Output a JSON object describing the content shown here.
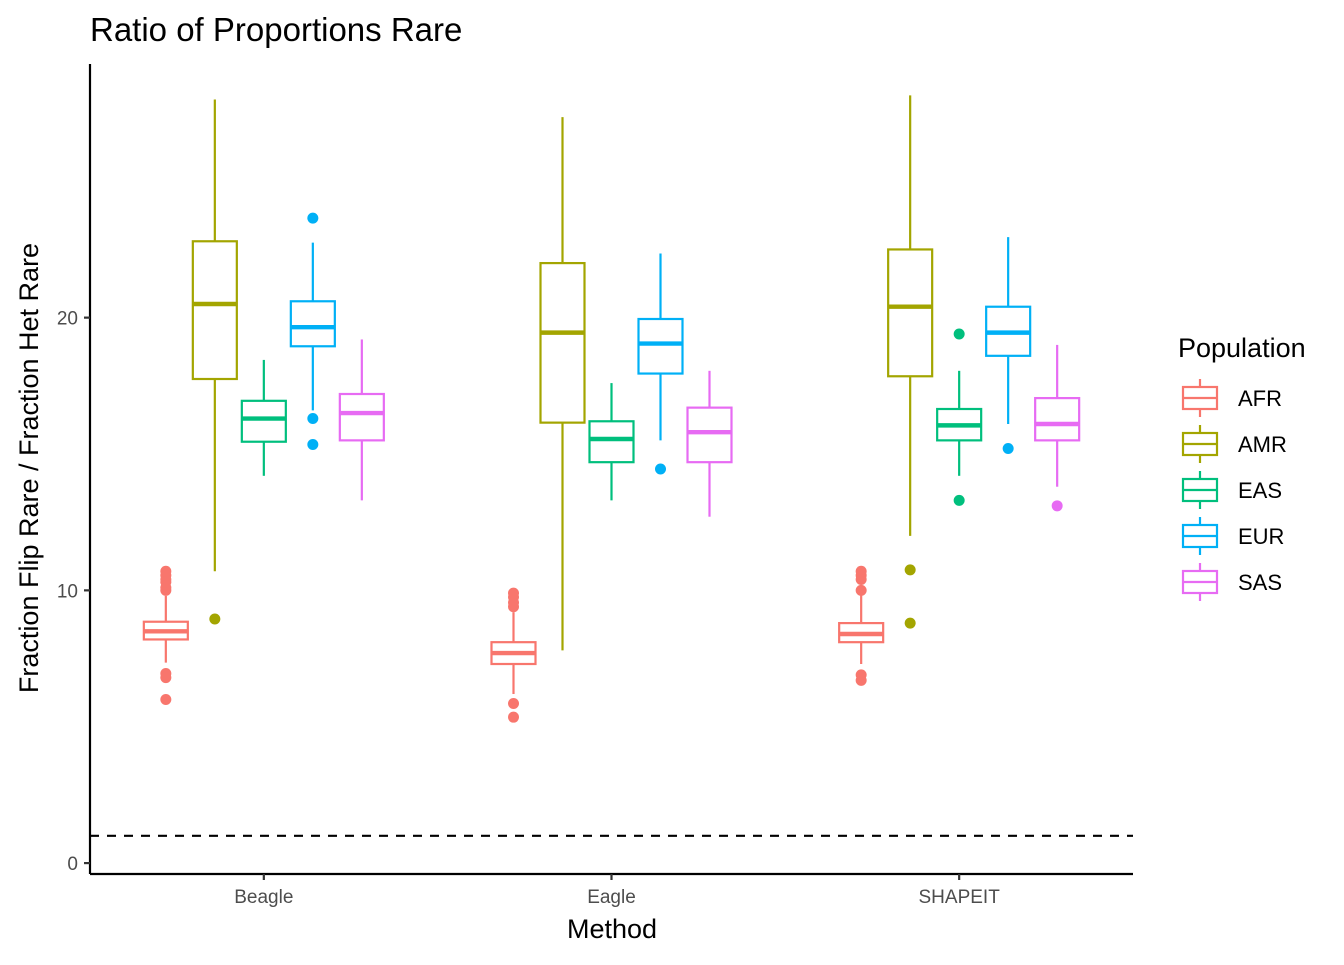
{
  "chart_data": {
    "type": "box",
    "title": "Ratio of Proportions Rare",
    "xlabel": "Method",
    "ylabel": "Fraction Flip Rare / Fraction Het Rare",
    "categories": [
      "Beagle",
      "Eagle",
      "SHAPEIT"
    ],
    "ylim": [
      -0.4,
      29.3
    ],
    "yticks": [
      0,
      10,
      20
    ],
    "grid": false,
    "reference_line": {
      "y": 1,
      "style": "dashed",
      "color": "#000000"
    },
    "legend": {
      "title": "Population",
      "position": "right"
    },
    "series": [
      {
        "name": "AFR",
        "color": "#F8766D",
        "boxes": [
          {
            "category": "Beagle",
            "whisker_low": 7.35,
            "q1": 8.2,
            "median": 8.5,
            "q3": 8.85,
            "whisker_high": 9.8,
            "outliers": [
              6.0,
              6.8,
              6.95,
              10.0,
              10.1,
              10.3,
              10.4,
              10.55,
              10.7
            ]
          },
          {
            "category": "Eagle",
            "whisker_low": 6.2,
            "q1": 7.3,
            "median": 7.7,
            "q3": 8.1,
            "whisker_high": 9.2,
            "outliers": [
              5.35,
              5.85,
              9.4,
              9.55,
              9.75,
              9.9
            ]
          },
          {
            "category": "SHAPEIT",
            "whisker_low": 7.3,
            "q1": 8.1,
            "median": 8.4,
            "q3": 8.8,
            "whisker_high": 9.9,
            "outliers": [
              6.7,
              6.9,
              10.0,
              10.4,
              10.55,
              10.7
            ]
          }
        ]
      },
      {
        "name": "AMR",
        "color": "#A3A500",
        "boxes": [
          {
            "category": "Beagle",
            "whisker_low": 10.7,
            "q1": 17.75,
            "median": 20.5,
            "q3": 22.8,
            "whisker_high": 28.0,
            "outliers": [
              8.95
            ]
          },
          {
            "category": "Eagle",
            "whisker_low": 7.8,
            "q1": 16.15,
            "median": 19.45,
            "q3": 22.0,
            "whisker_high": 27.35,
            "outliers": []
          },
          {
            "category": "SHAPEIT",
            "whisker_low": 12.0,
            "q1": 17.85,
            "median": 20.4,
            "q3": 22.5,
            "whisker_high": 28.15,
            "outliers": [
              8.8,
              10.75
            ]
          }
        ]
      },
      {
        "name": "EAS",
        "color": "#00BF7D",
        "boxes": [
          {
            "category": "Beagle",
            "whisker_low": 14.2,
            "q1": 15.45,
            "median": 16.3,
            "q3": 16.95,
            "whisker_high": 18.45,
            "outliers": []
          },
          {
            "category": "Eagle",
            "whisker_low": 13.3,
            "q1": 14.7,
            "median": 15.55,
            "q3": 16.2,
            "whisker_high": 17.6,
            "outliers": []
          },
          {
            "category": "SHAPEIT",
            "whisker_low": 14.2,
            "q1": 15.5,
            "median": 16.05,
            "q3": 16.65,
            "whisker_high": 18.05,
            "outliers": [
              13.3,
              19.4
            ]
          }
        ]
      },
      {
        "name": "EUR",
        "color": "#00B0F6",
        "boxes": [
          {
            "category": "Beagle",
            "whisker_low": 16.6,
            "q1": 18.95,
            "median": 19.65,
            "q3": 20.6,
            "whisker_high": 22.75,
            "outliers": [
              15.35,
              16.3,
              23.65
            ]
          },
          {
            "category": "Eagle",
            "whisker_low": 15.5,
            "q1": 17.95,
            "median": 19.05,
            "q3": 19.95,
            "whisker_high": 22.35,
            "outliers": [
              14.45
            ]
          },
          {
            "category": "SHAPEIT",
            "whisker_low": 16.1,
            "q1": 18.6,
            "median": 19.45,
            "q3": 20.4,
            "whisker_high": 22.95,
            "outliers": [
              15.2
            ]
          }
        ]
      },
      {
        "name": "SAS",
        "color": "#E76BF3",
        "boxes": [
          {
            "category": "Beagle",
            "whisker_low": 13.3,
            "q1": 15.5,
            "median": 16.5,
            "q3": 17.2,
            "whisker_high": 19.2,
            "outliers": []
          },
          {
            "category": "Eagle",
            "whisker_low": 12.7,
            "q1": 14.7,
            "median": 15.8,
            "q3": 16.7,
            "whisker_high": 18.05,
            "outliers": []
          },
          {
            "category": "SHAPEIT",
            "whisker_low": 13.8,
            "q1": 15.5,
            "median": 16.1,
            "q3": 17.05,
            "whisker_high": 19.0,
            "outliers": [
              13.1
            ]
          }
        ]
      }
    ]
  }
}
